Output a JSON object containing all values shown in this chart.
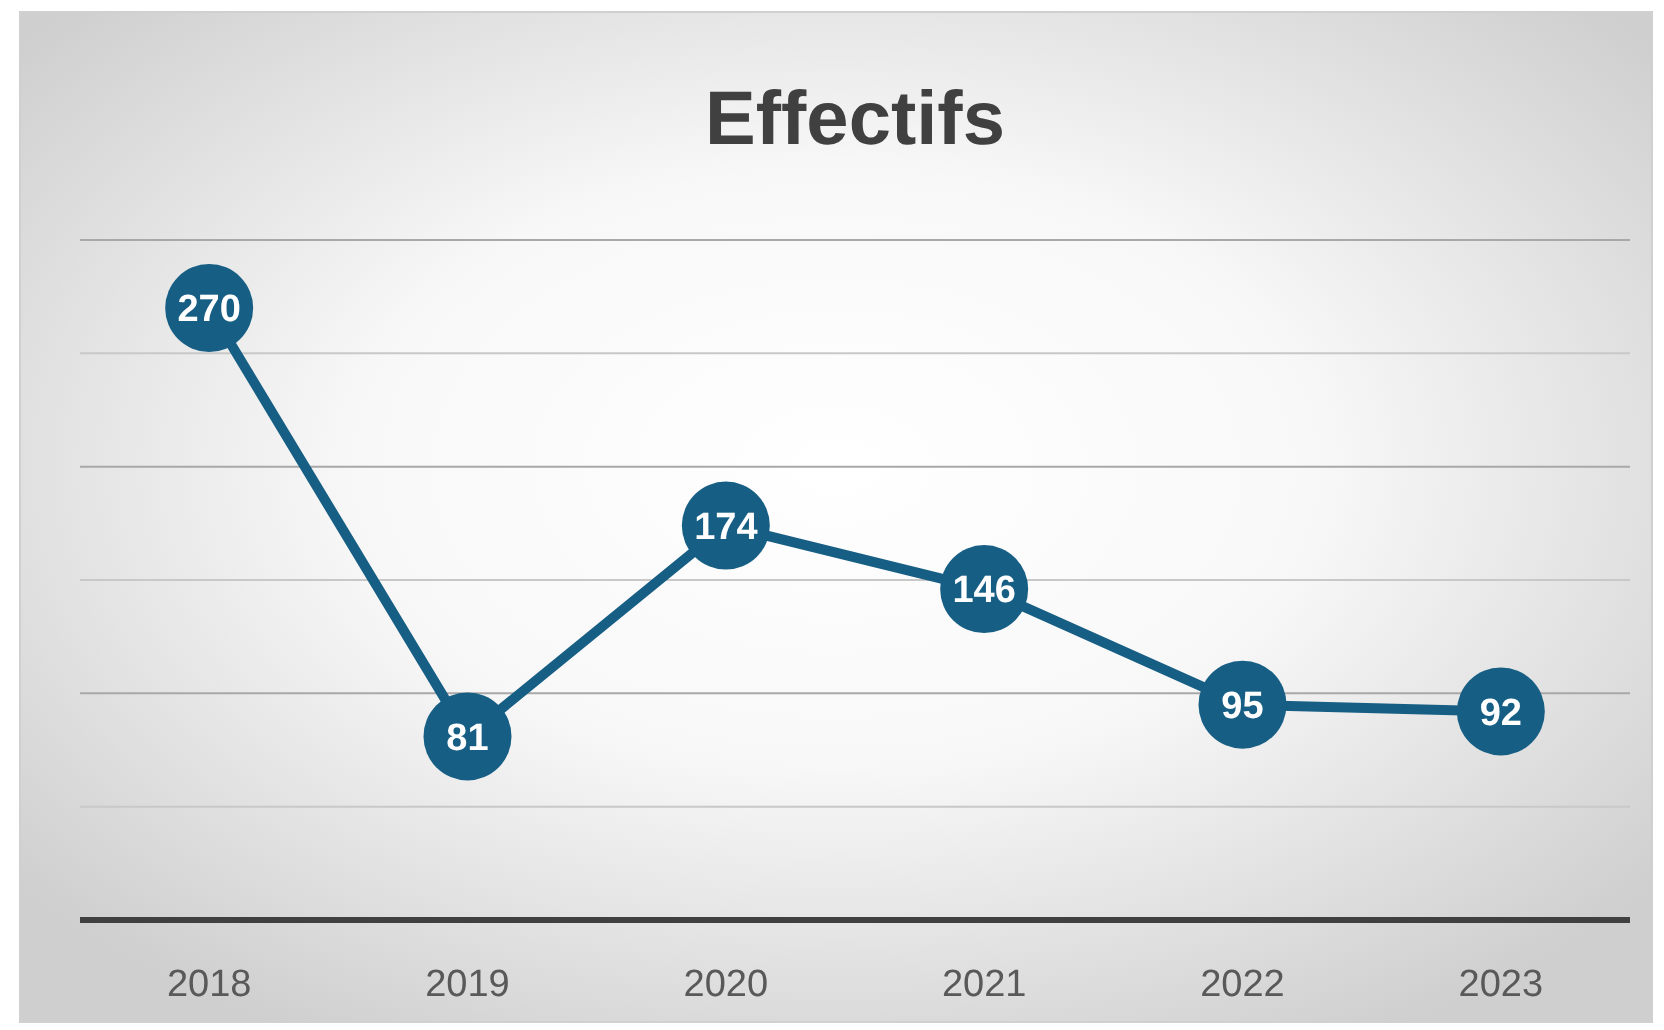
{
  "chart_data": {
    "type": "line",
    "title": "Effectifs",
    "categories": [
      "2018",
      "2019",
      "2020",
      "2021",
      "2022",
      "2023"
    ],
    "series": [
      {
        "color": "#165e84",
        "values": [
          270,
          81,
          174,
          146,
          95,
          92
        ]
      }
    ],
    "ylim": [
      0,
      300
    ],
    "yticks": [
      {
        "value": 0,
        "label": null
      },
      {
        "value": 50,
        "label": null
      },
      {
        "value": 100,
        "label": null
      },
      {
        "value": 150,
        "label": null
      },
      {
        "value": 200,
        "label": null
      },
      {
        "value": 250,
        "label": null
      },
      {
        "value": 300,
        "label": null
      }
    ],
    "grid": "y",
    "tick_labels": "x",
    "data_labels": true,
    "marker": "circle",
    "line_style": "solid"
  }
}
